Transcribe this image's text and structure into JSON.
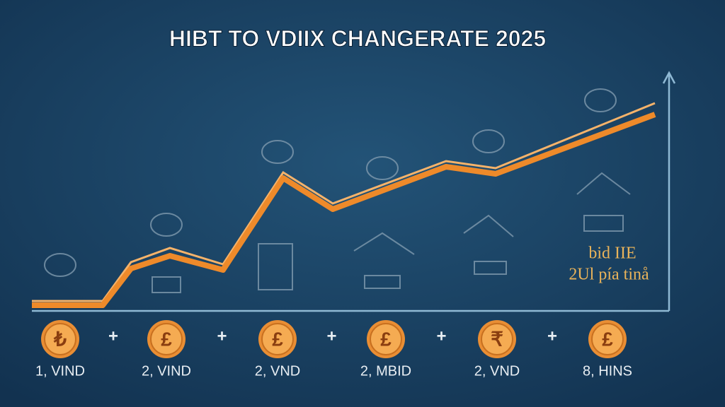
{
  "title": "HIBT TO VDIIX CHANGERATE 2025",
  "annotation": {
    "line1": "bid IIE",
    "line2": "2Ul pía tinå"
  },
  "separator": "+",
  "coins": [
    {
      "symbol": "₺",
      "label": "1, VIND"
    },
    {
      "symbol": "£",
      "label": "2, VIND"
    },
    {
      "symbol": "£",
      "label": "2, VND"
    },
    {
      "symbol": "£",
      "label": "2, MBID"
    },
    {
      "symbol": "₹",
      "label": "2, VND"
    },
    {
      "symbol": "£",
      "label": "8, HINS"
    }
  ]
}
